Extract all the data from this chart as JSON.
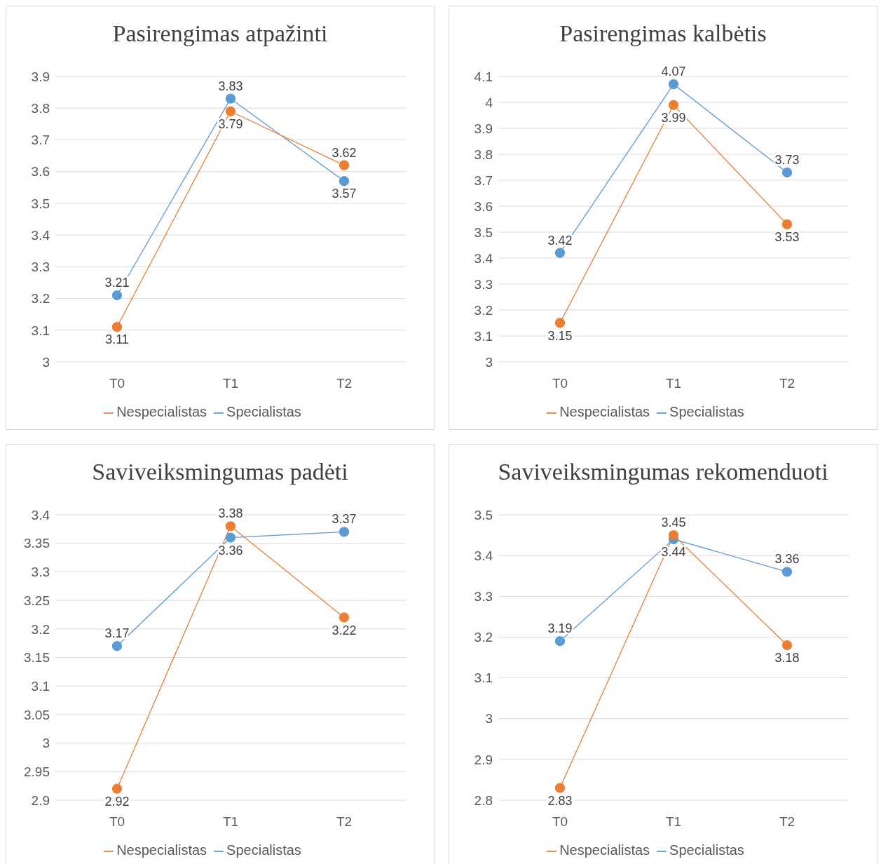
{
  "chart_data": [
    {
      "type": "line",
      "title": "Pasirengimas atpažinti",
      "categories": [
        "T0",
        "T1",
        "T2"
      ],
      "series": [
        {
          "name": "Specialistas",
          "color": "#5b9bd5",
          "values": [
            3.21,
            3.83,
            3.57
          ]
        },
        {
          "name": "Nespecialistas",
          "color": "#ed7d31",
          "values": [
            3.11,
            3.79,
            3.62
          ]
        }
      ],
      "ylim": [
        3,
        3.9
      ],
      "yticks": [
        3,
        3.1,
        3.2,
        3.3,
        3.4,
        3.5,
        3.6,
        3.7,
        3.8,
        3.9
      ],
      "grid": "y",
      "legend": "bottom",
      "marker": "circle",
      "data_labels": true
    },
    {
      "type": "line",
      "title": "Pasirengimas kalbėtis",
      "categories": [
        "T0",
        "T1",
        "T2"
      ],
      "series": [
        {
          "name": "Specialistas",
          "color": "#5b9bd5",
          "values": [
            3.42,
            4.07,
            3.73
          ]
        },
        {
          "name": "Nespecialistas",
          "color": "#ed7d31",
          "values": [
            3.15,
            3.99,
            3.53
          ]
        }
      ],
      "ylim": [
        3,
        4.1
      ],
      "yticks": [
        3,
        3.1,
        3.2,
        3.3,
        3.4,
        3.5,
        3.6,
        3.7,
        3.8,
        3.9,
        4,
        4.1
      ],
      "grid": "y",
      "legend": "bottom",
      "marker": "circle",
      "data_labels": true
    },
    {
      "type": "line",
      "title": "Saviveiksmingumas padėti",
      "categories": [
        "T0",
        "T1",
        "T2"
      ],
      "series": [
        {
          "name": "Specialistas",
          "color": "#5b9bd5",
          "values": [
            3.17,
            3.36,
            3.37
          ]
        },
        {
          "name": "Nespecialistas",
          "color": "#ed7d31",
          "values": [
            2.92,
            3.38,
            3.22
          ]
        }
      ],
      "ylim": [
        2.9,
        3.4
      ],
      "yticks": [
        2.9,
        2.95,
        3,
        3.05,
        3.1,
        3.15,
        3.2,
        3.25,
        3.3,
        3.35,
        3.4
      ],
      "grid": "y",
      "legend": "bottom",
      "marker": "circle",
      "data_labels": true
    },
    {
      "type": "line",
      "title": "Saviveiksmingumas rekomenduoti",
      "categories": [
        "T0",
        "T1",
        "T2"
      ],
      "series": [
        {
          "name": "Specialistas",
          "color": "#5b9bd5",
          "values": [
            3.19,
            3.44,
            3.36
          ]
        },
        {
          "name": "Nespecialistas",
          "color": "#ed7d31",
          "values": [
            2.83,
            3.45,
            3.18
          ]
        }
      ],
      "ylim": [
        2.8,
        3.5
      ],
      "yticks": [
        2.8,
        2.9,
        3,
        3.1,
        3.2,
        3.3,
        3.4,
        3.5
      ],
      "grid": "y",
      "legend": "bottom",
      "marker": "circle",
      "data_labels": true
    }
  ]
}
